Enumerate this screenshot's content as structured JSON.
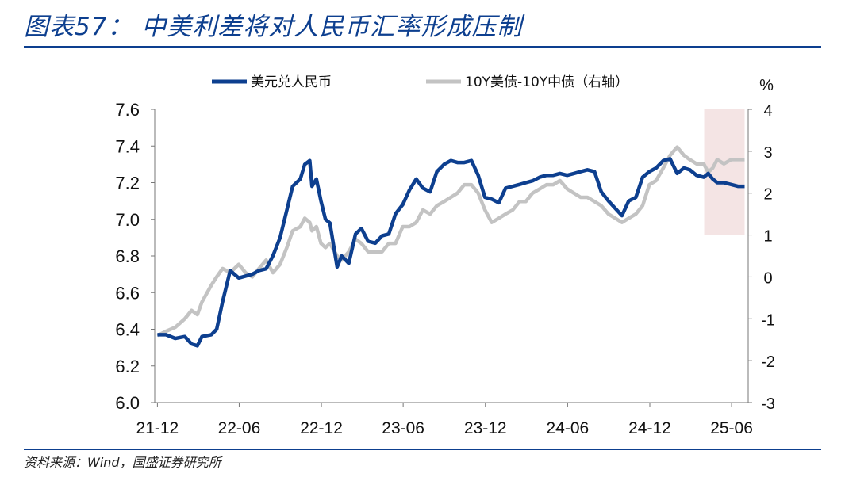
{
  "header": {
    "title": "图表57：  中美利差将对人民币汇率形成压制"
  },
  "footer": {
    "source": "资料来源：Wind，国盛证券研究所"
  },
  "chart_data": {
    "type": "line",
    "legend": {
      "placement": "top",
      "entries": [
        "美元兑人民币",
        "10Y美债-10Y中债（右轴）"
      ]
    },
    "y_right_unit": "%",
    "x_ticks": [
      "21-12",
      "22-06",
      "22-12",
      "23-06",
      "23-12",
      "24-06",
      "24-12",
      "25-06"
    ],
    "y_left": {
      "ticks": [
        "7.6",
        "7.4",
        "7.2",
        "7.0",
        "6.8",
        "6.6",
        "6.4",
        "6.2",
        "6.0"
      ],
      "range": [
        6.0,
        7.6
      ]
    },
    "y_right": {
      "ticks": [
        "4",
        "3",
        "2",
        "1",
        "0",
        "-1",
        "-2",
        "-3"
      ],
      "range": [
        -3,
        4
      ]
    },
    "highlight_region": {
      "x_start": "2025-04-01",
      "x_end": "2025-06-30",
      "y_right_range": [
        1,
        4
      ]
    },
    "series": [
      {
        "name": "美元兑人民币",
        "axis": "left",
        "color": "#0d3f8f",
        "x": [
          "2021-12-01",
          "2021-12-20",
          "2022-01-10",
          "2022-01-31",
          "2022-02-15",
          "2022-02-28",
          "2022-03-10",
          "2022-03-31",
          "2022-04-12",
          "2022-04-25",
          "2022-05-12",
          "2022-05-31",
          "2022-06-15",
          "2022-06-30",
          "2022-07-15",
          "2022-07-31",
          "2022-08-15",
          "2022-08-31",
          "2022-09-15",
          "2022-09-28",
          "2022-10-15",
          "2022-10-25",
          "2022-11-05",
          "2022-11-10",
          "2022-11-20",
          "2022-11-30",
          "2022-12-10",
          "2022-12-20",
          "2023-01-05",
          "2023-01-15",
          "2023-01-31",
          "2023-02-15",
          "2023-02-28",
          "2023-03-15",
          "2023-03-31",
          "2023-04-15",
          "2023-04-30",
          "2023-05-15",
          "2023-05-31",
          "2023-06-15",
          "2023-06-30",
          "2023-07-15",
          "2023-07-31",
          "2023-08-15",
          "2023-08-31",
          "2023-09-15",
          "2023-09-30",
          "2023-10-15",
          "2023-10-31",
          "2023-11-15",
          "2023-11-30",
          "2023-12-15",
          "2023-12-31",
          "2024-01-15",
          "2024-01-31",
          "2024-02-15",
          "2024-02-29",
          "2024-03-15",
          "2024-03-31",
          "2024-04-15",
          "2024-04-30",
          "2024-05-15",
          "2024-05-31",
          "2024-06-15",
          "2024-06-30",
          "2024-07-15",
          "2024-07-31",
          "2024-08-15",
          "2024-08-31",
          "2024-09-15",
          "2024-09-30",
          "2024-10-15",
          "2024-10-31",
          "2024-11-15",
          "2024-11-30",
          "2024-12-15",
          "2024-12-31",
          "2025-01-15",
          "2025-01-31",
          "2025-02-15",
          "2025-02-28",
          "2025-03-15",
          "2025-03-31",
          "2025-04-10",
          "2025-04-20",
          "2025-04-30",
          "2025-05-15",
          "2025-05-31",
          "2025-06-15",
          "2025-06-30"
        ],
        "values": [
          6.37,
          6.37,
          6.35,
          6.36,
          6.32,
          6.31,
          6.36,
          6.37,
          6.4,
          6.55,
          6.72,
          6.68,
          6.69,
          6.7,
          6.72,
          6.73,
          6.8,
          6.9,
          7.05,
          7.18,
          7.22,
          7.3,
          7.32,
          7.18,
          7.22,
          7.1,
          7.0,
          6.98,
          6.74,
          6.8,
          6.76,
          6.92,
          6.95,
          6.88,
          6.87,
          6.91,
          6.92,
          7.03,
          7.08,
          7.16,
          7.22,
          7.17,
          7.15,
          7.26,
          7.3,
          7.32,
          7.31,
          7.31,
          7.32,
          7.24,
          7.12,
          7.11,
          7.09,
          7.17,
          7.18,
          7.19,
          7.2,
          7.21,
          7.23,
          7.24,
          7.24,
          7.25,
          7.24,
          7.25,
          7.26,
          7.27,
          7.26,
          7.15,
          7.1,
          7.06,
          7.02,
          7.1,
          7.12,
          7.23,
          7.26,
          7.28,
          7.32,
          7.33,
          7.25,
          7.28,
          7.27,
          7.24,
          7.23,
          7.25,
          7.22,
          7.2,
          7.2,
          7.19,
          7.18,
          7.18
        ]
      },
      {
        "name": "10Y美债-10Y中债（右轴）",
        "axis": "right",
        "color": "#c3c3c3",
        "x": [
          "2021-12-01",
          "2021-12-20",
          "2022-01-10",
          "2022-01-31",
          "2022-02-15",
          "2022-02-28",
          "2022-03-10",
          "2022-03-31",
          "2022-04-12",
          "2022-04-25",
          "2022-05-12",
          "2022-05-31",
          "2022-06-15",
          "2022-06-30",
          "2022-07-15",
          "2022-07-31",
          "2022-08-15",
          "2022-08-31",
          "2022-09-15",
          "2022-09-28",
          "2022-10-15",
          "2022-10-25",
          "2022-11-05",
          "2022-11-10",
          "2022-11-20",
          "2022-11-30",
          "2022-12-10",
          "2022-12-20",
          "2023-01-05",
          "2023-01-15",
          "2023-01-31",
          "2023-02-15",
          "2023-02-28",
          "2023-03-15",
          "2023-03-31",
          "2023-04-15",
          "2023-04-30",
          "2023-05-15",
          "2023-05-31",
          "2023-06-15",
          "2023-06-30",
          "2023-07-15",
          "2023-07-31",
          "2023-08-15",
          "2023-08-31",
          "2023-09-15",
          "2023-09-30",
          "2023-10-15",
          "2023-10-31",
          "2023-11-15",
          "2023-11-30",
          "2023-12-15",
          "2023-12-31",
          "2024-01-15",
          "2024-01-31",
          "2024-02-15",
          "2024-02-29",
          "2024-03-15",
          "2024-03-31",
          "2024-04-15",
          "2024-04-30",
          "2024-05-15",
          "2024-05-31",
          "2024-06-15",
          "2024-06-30",
          "2024-07-15",
          "2024-07-31",
          "2024-08-15",
          "2024-08-31",
          "2024-09-15",
          "2024-09-30",
          "2024-10-15",
          "2024-10-31",
          "2024-11-15",
          "2024-11-30",
          "2024-12-15",
          "2024-12-31",
          "2025-01-15",
          "2025-01-31",
          "2025-02-15",
          "2025-02-28",
          "2025-03-15",
          "2025-03-31",
          "2025-04-10",
          "2025-04-20",
          "2025-04-30",
          "2025-05-15",
          "2025-05-31",
          "2025-06-15",
          "2025-06-30"
        ],
        "values": [
          -1.4,
          -1.3,
          -1.2,
          -1.0,
          -0.8,
          -0.9,
          -0.6,
          -0.2,
          0.0,
          0.2,
          0.1,
          0.3,
          0.1,
          0.0,
          0.2,
          0.4,
          0.1,
          0.3,
          0.7,
          1.1,
          1.2,
          1.4,
          1.3,
          1.1,
          1.2,
          0.8,
          0.7,
          0.8,
          0.5,
          0.4,
          0.6,
          0.9,
          0.8,
          0.6,
          0.6,
          0.6,
          0.8,
          0.8,
          1.2,
          1.2,
          1.3,
          1.6,
          1.5,
          1.7,
          1.8,
          1.9,
          2.0,
          2.2,
          2.2,
          2.0,
          1.6,
          1.3,
          1.4,
          1.5,
          1.6,
          1.8,
          1.8,
          2.0,
          2.1,
          2.2,
          2.2,
          2.3,
          2.1,
          2.0,
          1.9,
          1.9,
          1.8,
          1.7,
          1.5,
          1.4,
          1.3,
          1.4,
          1.5,
          1.7,
          2.2,
          2.3,
          2.6,
          2.9,
          3.1,
          2.9,
          2.8,
          2.7,
          2.7,
          2.5,
          2.6,
          2.8,
          2.7,
          2.8,
          2.8,
          2.8
        ]
      }
    ]
  }
}
